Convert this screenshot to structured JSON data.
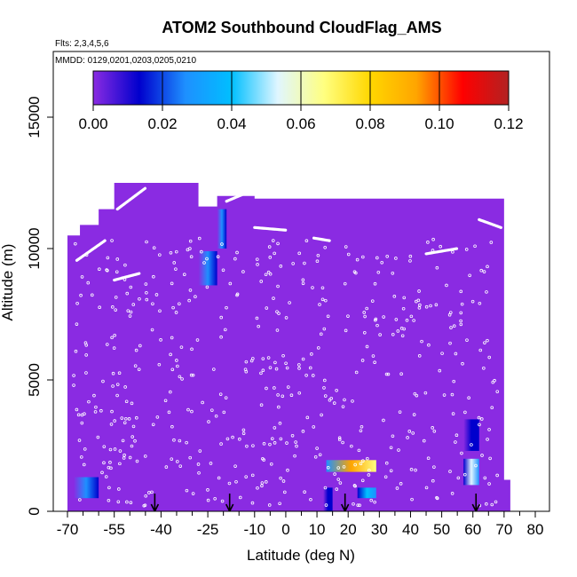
{
  "chart_data": {
    "type": "heatmap",
    "title": "ATOM2 Southbound CloudFlag_AMS",
    "subtitle_flights": "Flts: 2,3,4,5,6",
    "subtitle_dates": "MMDD: 0129,0201,0203,0205,0210",
    "xlabel": "Latitude (deg N)",
    "ylabel": "Altitude (m)",
    "xlim": [
      -70,
      80
    ],
    "ylim": [
      0,
      17500
    ],
    "x_ticks": [
      -70,
      -55,
      -40,
      -25,
      -10,
      0,
      10,
      20,
      30,
      40,
      50,
      60,
      70,
      80
    ],
    "x_minor_ticks": [
      -65,
      -60,
      -50,
      -45,
      -35,
      -30,
      -20,
      -15,
      -5,
      5,
      15,
      25,
      35,
      45,
      55,
      65,
      75
    ],
    "y_ticks": [
      0,
      5000,
      10000,
      15000
    ],
    "colorbar": {
      "min": 0,
      "max": 0.12,
      "ticks": [
        "0.00",
        "0.02",
        "0.04",
        "0.06",
        "0.08",
        "0.10",
        "0.12"
      ],
      "colors": [
        "#8a2be2",
        "#0000cd",
        "#1e90ff",
        "#00bfff",
        "#e0f6ff",
        "#ffff80",
        "#ffd700",
        "#ffa500",
        "#ff0000",
        "#b22222"
      ]
    },
    "background_value": 0.0,
    "background_color": "#8a2be2",
    "field_outline": [
      [
        -70,
        0
      ],
      [
        -70,
        10500
      ],
      [
        -66,
        10500
      ],
      [
        -66,
        10900
      ],
      [
        -60,
        10900
      ],
      [
        -60,
        11500
      ],
      [
        -55,
        11500
      ],
      [
        -55,
        12500
      ],
      [
        -28,
        12500
      ],
      [
        -28,
        11600
      ],
      [
        -22,
        11600
      ],
      [
        -22,
        12000
      ],
      [
        -10,
        12000
      ],
      [
        -10,
        11900
      ],
      [
        70,
        11900
      ],
      [
        70,
        1200
      ],
      [
        72,
        1200
      ],
      [
        72,
        0
      ]
    ],
    "cloud_patches": [
      {
        "lat": [
          -68,
          -60
        ],
        "alt": [
          500,
          1300
        ],
        "value": 0.025
      },
      {
        "lat": [
          13,
          29
        ],
        "alt": [
          1500,
          1950
        ],
        "value": 0.09
      },
      {
        "lat": [
          12,
          15
        ],
        "alt": [
          0,
          900
        ],
        "value": 0.02
      },
      {
        "lat": [
          23,
          29
        ],
        "alt": [
          500,
          900
        ],
        "value": 0.04
      },
      {
        "lat": [
          57,
          62
        ],
        "alt": [
          2300,
          3500
        ],
        "value": 0.02
      },
      {
        "lat": [
          57,
          62
        ],
        "alt": [
          1000,
          2000
        ],
        "value": 0.05
      },
      {
        "lat": [
          -28,
          -22
        ],
        "alt": [
          8600,
          9900
        ],
        "value": 0.03
      },
      {
        "lat": [
          -22,
          -19
        ],
        "alt": [
          10000,
          11500
        ],
        "value": 0.025
      }
    ],
    "flight_track_arrows": [
      -42,
      -18,
      19,
      61
    ],
    "flight_tracks": [
      {
        "lat": [
          -67,
          -58
        ],
        "alt": [
          9550,
          10300
        ]
      },
      {
        "lat": [
          -55,
          -47
        ],
        "alt": [
          8800,
          9050
        ]
      },
      {
        "lat": [
          -54,
          -45
        ],
        "alt": [
          11500,
          12300
        ]
      },
      {
        "lat": [
          -19,
          -13
        ],
        "alt": [
          11800,
          12100
        ]
      },
      {
        "lat": [
          -10,
          0
        ],
        "alt": [
          10800,
          10700
        ]
      },
      {
        "lat": [
          9,
          14
        ],
        "alt": [
          10400,
          10300
        ]
      },
      {
        "lat": [
          45,
          55
        ],
        "alt": [
          9800,
          10000
        ]
      },
      {
        "lat": [
          62,
          69
        ],
        "alt": [
          11100,
          10800
        ]
      }
    ]
  }
}
